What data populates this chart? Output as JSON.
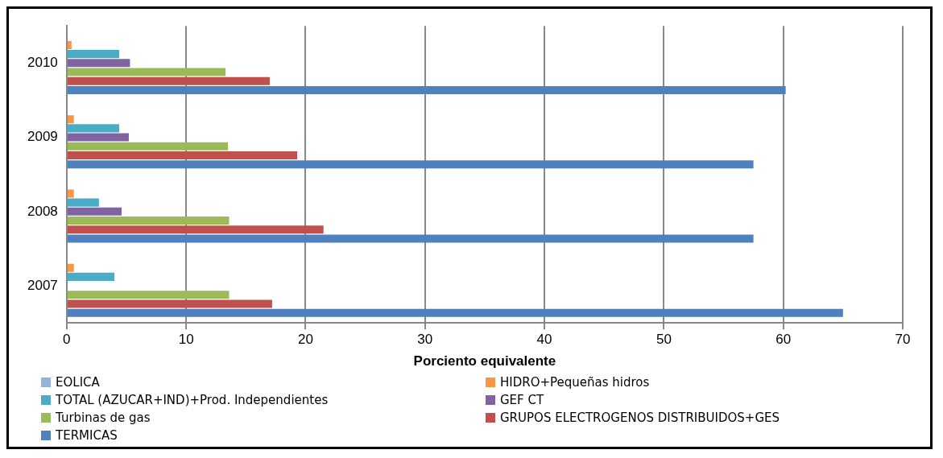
{
  "chart_data": {
    "type": "bar",
    "orientation": "horizontal",
    "xlabel": "Porciento equivalente",
    "categories": [
      "2010",
      "2009",
      "2008",
      "2007"
    ],
    "series": [
      {
        "name": "EOLICA",
        "color": "#95b3d7",
        "values": [
          null,
          null,
          null,
          null
        ]
      },
      {
        "name": "HIDRO+Pequeñas hidros",
        "color": "#f79646",
        "values": [
          0.4,
          0.6,
          0.6,
          0.6
        ]
      },
      {
        "name": "TOTAL (AZUCAR+IND)+Prod. Independientes",
        "color": "#4bacc6",
        "values": [
          4.4,
          4.4,
          2.7,
          4.0
        ]
      },
      {
        "name": "GEF CT",
        "color": "#8064a2",
        "values": [
          5.3,
          5.2,
          4.6,
          0
        ]
      },
      {
        "name": "Turbinas de gas",
        "color": "#9bbb59",
        "values": [
          13.3,
          13.5,
          13.6,
          13.6
        ]
      },
      {
        "name": "GRUPOS ELECTROGENOS DISTRIBUIDOS+GES",
        "color": "#c0504d",
        "values": [
          17,
          19.3,
          21.5,
          17.2
        ]
      },
      {
        "name": "TERMICAS",
        "color": "#4f81bd",
        "values": [
          60.2,
          57.5,
          57.5,
          65
        ]
      }
    ],
    "xlim": [
      0,
      70
    ],
    "xticks": [
      0,
      10,
      20,
      30,
      40,
      50,
      60,
      70
    ],
    "grid": "x",
    "legend": "bottom"
  }
}
